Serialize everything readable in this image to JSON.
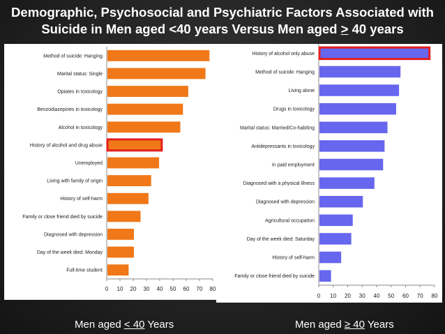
{
  "title": {
    "line1": "Demographic, Psychosocial and Psychiatric Factors Associated with",
    "line2_prefix": "Suicide in Men aged <40 years Versus Men aged ",
    "line2_underlined": ">",
    "line2_suffix": " 40 years"
  },
  "captions": {
    "left": {
      "prefix": "Men aged ",
      "underlined": "< 40",
      "suffix": " Years"
    },
    "right": {
      "prefix": "Men aged ",
      "underlined": "≥ 40",
      "suffix": " Years"
    }
  },
  "chart_data": [
    {
      "type": "bar",
      "orientation": "horizontal",
      "categories": [
        "Method of suicide: Hanging",
        "Marital status: Single",
        "Opiates in toxicology",
        "Benzodiazepines in toxicology",
        "Alcohol in toxicology",
        "History of alcohol and drug abuse",
        "Unemployed",
        "Living with family of origin",
        "History of self-harm",
        "Family or close friend died by suicide",
        "Diagnosed with depression",
        "Day of the week died: Monday",
        "Full-time student"
      ],
      "values": [
        77,
        74,
        61,
        57,
        55,
        41,
        39,
        33,
        31,
        25,
        20,
        20,
        16
      ],
      "highlight_index": 5,
      "xlim": [
        0,
        80
      ],
      "xticks": [
        0,
        10,
        20,
        30,
        40,
        50,
        60,
        70,
        80
      ],
      "bar_color": "#f07818",
      "highlight_color": "#e41e1e",
      "grid": false
    },
    {
      "type": "bar",
      "orientation": "horizontal",
      "categories": [
        "History of alcohol only abuse",
        "Method of suicide: Hanging",
        "Living alone",
        "Drugs in toxicology",
        "Marital status: Married/Co-habiting",
        "Antidepressants in toxicology",
        "In paid employment",
        "Diagnosed with a physical illness",
        "Diagnosed with depression",
        "Agricultural occupation",
        "Day of the week died: Saturday",
        "History of self-harm",
        "Family or close friend died by suicide"
      ],
      "values": [
        76,
        56,
        55,
        53,
        47,
        45,
        44,
        38,
        30,
        23,
        22,
        15,
        8
      ],
      "highlight_index": 0,
      "xlim": [
        0,
        80
      ],
      "xticks": [
        0,
        10,
        20,
        30,
        40,
        50,
        60,
        70,
        80
      ],
      "bar_color": "#6666ee",
      "highlight_color": "#e41e1e",
      "grid": false
    }
  ]
}
